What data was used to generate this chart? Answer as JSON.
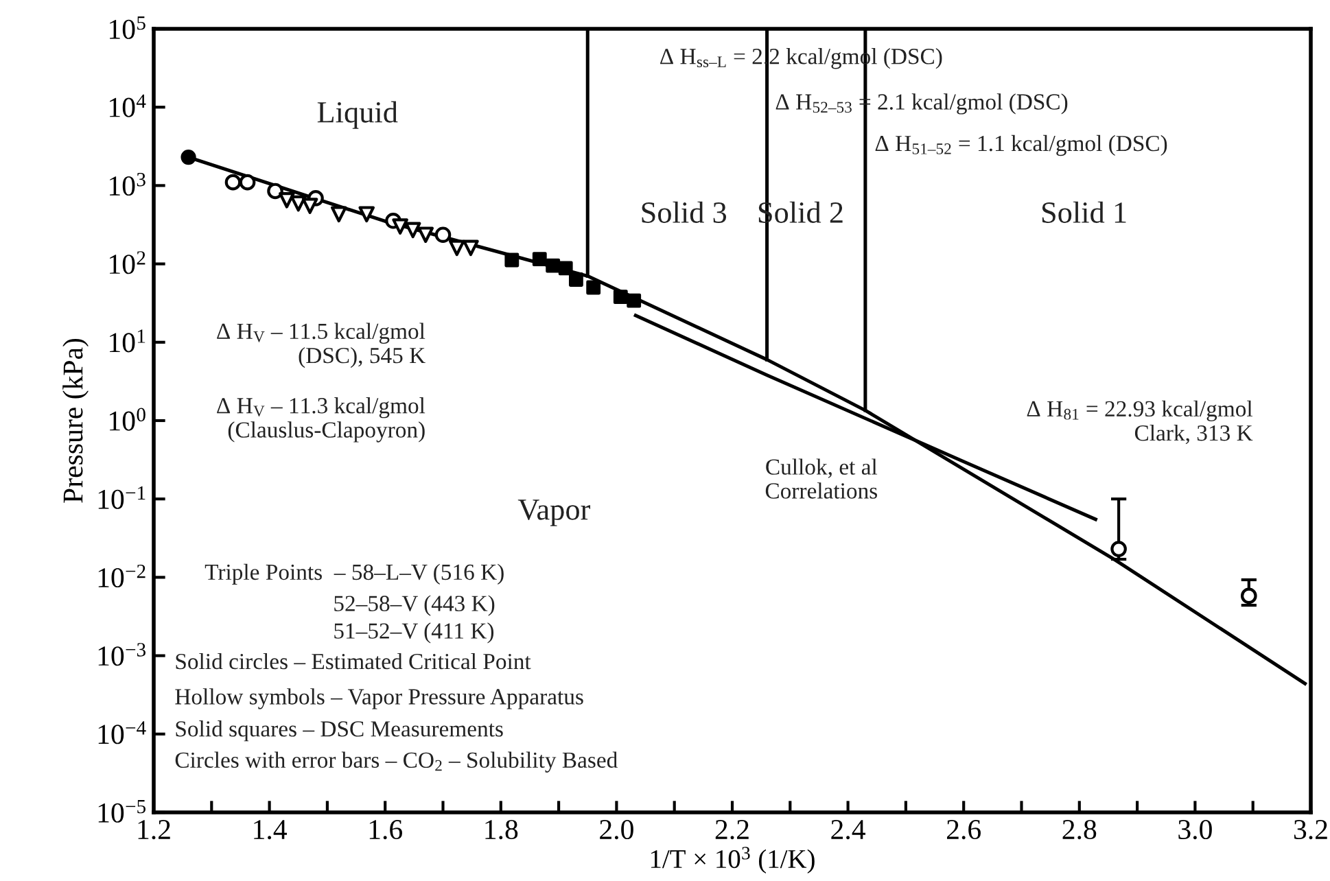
{
  "chart_data": {
    "type": "line",
    "xlabel": "1/T × 10$^{3}$ (1/K)",
    "ylabel": "Pressure (kPa)",
    "log": "y",
    "xlim": [
      1.2,
      3.2
    ],
    "ylim": [
      1e-05,
      100000
    ],
    "xticks": [
      1.2,
      {
        "value": 1.3,
        "label": null
      },
      1.4,
      {
        "value": 1.5,
        "label": null
      },
      1.6,
      {
        "value": 1.7,
        "label": null
      },
      1.8,
      {
        "value": 1.9,
        "label": null
      },
      {
        "value": 2.0,
        "label": "2.0"
      },
      {
        "value": 2.1,
        "label": null
      },
      2.2,
      {
        "value": 2.3,
        "label": null
      },
      2.4,
      {
        "value": 2.5,
        "label": null
      },
      2.6,
      {
        "value": 2.7,
        "label": null
      },
      2.8,
      {
        "value": 2.9,
        "label": null
      },
      {
        "value": 3.0,
        "label": "3.0"
      },
      {
        "value": 3.1,
        "label": null
      },
      3.2
    ],
    "yticks": [
      {
        "value": 1e-05,
        "label": "10$^{−5}$"
      },
      {
        "value": 0.0001,
        "label": "10$^{−4}$"
      },
      {
        "value": 0.001,
        "label": "10$^{−3}$"
      },
      {
        "value": 0.01,
        "label": "10$^{−2}$"
      },
      {
        "value": 0.1,
        "label": "10$^{−1}$"
      },
      {
        "value": 1,
        "label": "10$^{0}$"
      },
      {
        "value": 10,
        "label": "10$^{1}$"
      },
      {
        "value": 100,
        "label": "10$^{2}$"
      },
      {
        "value": 1000,
        "label": "10$^{3}$"
      },
      {
        "value": 10000,
        "label": "10$^{4}$"
      },
      {
        "value": 100000,
        "label": "10$^{5}$"
      }
    ],
    "grid": false,
    "series": [
      {
        "color": "#000000",
        "x": [
          1.26,
          1.6,
          1.95,
          2.26,
          2.43,
          2.86,
          3.19
        ],
        "values": [
          2300,
          350,
          70,
          6,
          1.35,
          0.017,
          0.00044
        ]
      },
      {
        "color": "#000000",
        "x": [
          2.033,
          2.26,
          2.6,
          2.828
        ],
        "values": [
          22,
          3.8,
          0.3,
          0.055
        ]
      },
      {
        "color": "#000000",
        "x": [
          1.95,
          1.95
        ],
        "values": [
          70,
          100000
        ]
      },
      {
        "color": "#000000",
        "x": [
          2.26,
          2.26
        ],
        "values": [
          6,
          100000
        ]
      },
      {
        "color": "#000000",
        "x": [
          2.43,
          2.43
        ],
        "values": [
          1.35,
          100000
        ]
      },
      {
        "marker": "circle",
        "color": "#000000",
        "x": [
          1.26
        ],
        "values": [
          2300
        ]
      },
      {
        "type": "scatter",
        "marker": "circle",
        "color": "#000000",
        "x": [
          1.337,
          1.362,
          1.41,
          1.48,
          1.614,
          1.7
        ],
        "values": [
          1100,
          1100,
          850,
          690,
          355,
          235
        ]
      },
      {
        "type": "scatter",
        "marker": "triangle",
        "color": "#000000",
        "x": [
          1.43,
          1.45,
          1.47,
          1.52,
          1.568,
          1.626,
          1.648,
          1.67,
          1.724,
          1.748
        ],
        "values": [
          650,
          590,
          550,
          430,
          430,
          300,
          270,
          235,
          160,
          160
        ]
      },
      {
        "type": "scatter",
        "marker": "square",
        "color": "#000000",
        "x": [
          1.819,
          1.867,
          1.89,
          1.912,
          1.93,
          1.96,
          2.007,
          2.03
        ],
        "values": [
          112,
          115,
          95,
          88,
          63,
          50,
          38,
          34
        ]
      },
      {
        "type": "scatter",
        "marker": "circle",
        "color": "#000000",
        "x": [
          2.868,
          3.093
        ],
        "values": [
          0.023,
          0.0058
        ],
        "errors": [
          [
            0.017,
            0.1
          ],
          [
            0.0044,
            0.0093
          ]
        ]
      }
    ],
    "annotations": [
      "Liquid",
      "Vapor",
      "Solid 3",
      "Solid 2",
      "Solid 1",
      "Δ H$_{ss–L}$ = 2.2 kcal/gmol (DSC)",
      "Δ H$_{52–53}$ = 2.1 kcal/gmol (DSC)",
      "Δ H$_{51–52}$ = 1.1 kcal/gmol (DSC)",
      "Δ H$_{V}$ – 11.5 kcal/gmol\n(DSC), 545 K",
      "Δ H$_{V}$ – 11.3 kcal/gmol\n(Clauslus-Clapoyron)",
      "Cullok, et al\nCorrelations",
      "Δ H$_{81}$ = 22.93 kcal/gmol\nClark, 313 K",
      "Triple Points  – 58–L–V (516 K)",
      "52–58–V (443 K)",
      "51–52–V (411 K)",
      "Solid circles – Estimated Critical Point",
      "Hollow symbols – Vapor Pressure Apparatus",
      "Solid squares – DSC Measurements",
      "Circles with error bars – CO$_{2}$ – Solubility Based"
    ]
  }
}
